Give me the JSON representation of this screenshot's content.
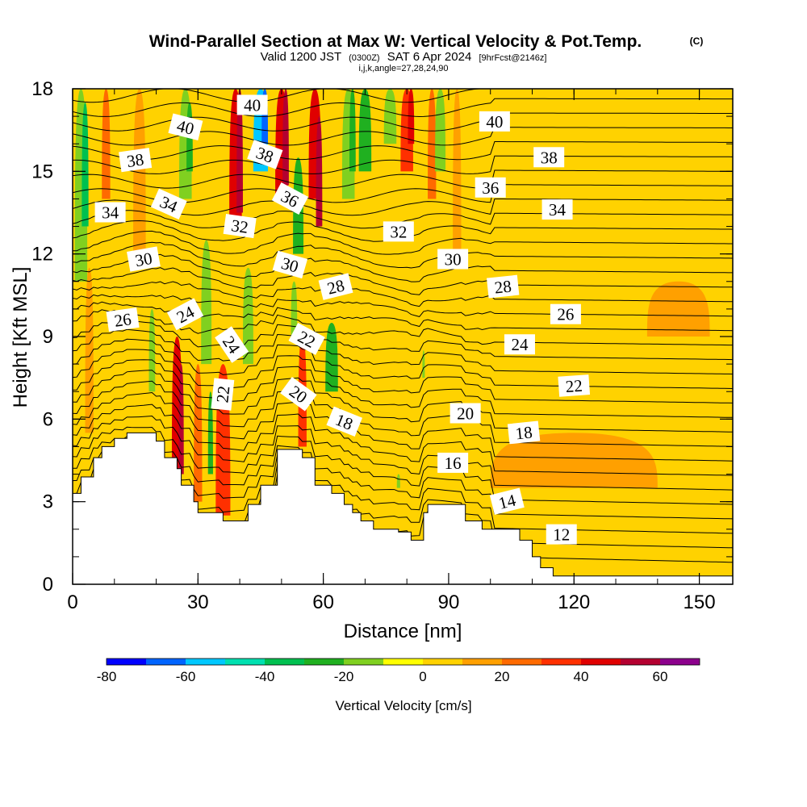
{
  "chart_data": {
    "type": "contour-section",
    "title": "Wind-Parallel Section at Max W: Vertical Velocity & Pot.Temp.",
    "copyright": "(C)",
    "subtitle_main": "Valid 1200 JST",
    "subtitle_utc": "(0300Z)",
    "subtitle_date": "SAT 6 Apr 2024",
    "subtitle_fcst": "[9hrFcst@2146z]",
    "subtitle2": "i,j,k,angle=27,28,24,90",
    "xlabel": "Distance [nm]",
    "ylabel": "Height [Kft MSL]",
    "xlim": [
      0,
      158
    ],
    "ylim": [
      0,
      18
    ],
    "x_ticks": [
      0,
      30,
      60,
      90,
      120,
      150
    ],
    "y_ticks": [
      0,
      3,
      6,
      9,
      12,
      15,
      18
    ],
    "colorbar": {
      "label": "Vertical Velocity [cm/s]",
      "bounds": [
        -80,
        -70,
        -60,
        -50,
        -40,
        -30,
        -20,
        -10,
        0,
        10,
        20,
        30,
        40,
        50,
        60,
        70
      ],
      "tick_labels": [
        "-80",
        "-60",
        "-40",
        "-20",
        "0",
        "20",
        "40",
        "60"
      ],
      "colors": [
        "#0000ff",
        "#0064ff",
        "#00c8ff",
        "#00e0b0",
        "#00c050",
        "#20b020",
        "#80d020",
        "#ffff00",
        "#ffd200",
        "#ffa000",
        "#ff6a00",
        "#ff3000",
        "#e00000",
        "#b40030",
        "#8c008c"
      ]
    },
    "terrain_kft": [
      [
        0,
        3.3
      ],
      [
        2,
        3.3
      ],
      [
        2,
        3.9
      ],
      [
        5,
        3.9
      ],
      [
        5,
        4.6
      ],
      [
        7,
        4.6
      ],
      [
        7,
        5.0
      ],
      [
        10,
        5.0
      ],
      [
        10,
        5.3
      ],
      [
        13,
        5.3
      ],
      [
        13,
        5.5
      ],
      [
        20,
        5.5
      ],
      [
        20,
        5.2
      ],
      [
        22,
        5.2
      ],
      [
        22,
        4.6
      ],
      [
        25,
        4.6
      ],
      [
        25,
        4.2
      ],
      [
        26,
        4.2
      ],
      [
        26,
        3.6
      ],
      [
        29,
        3.6
      ],
      [
        29,
        3.0
      ],
      [
        30,
        3.0
      ],
      [
        30,
        2.6
      ],
      [
        36,
        2.6
      ],
      [
        36,
        2.3
      ],
      [
        42,
        2.3
      ],
      [
        42,
        2.9
      ],
      [
        45,
        2.9
      ],
      [
        45,
        3.6
      ],
      [
        49,
        3.6
      ],
      [
        49,
        4.9
      ],
      [
        55,
        4.9
      ],
      [
        55,
        4.6
      ],
      [
        58,
        4.6
      ],
      [
        58,
        3.6
      ],
      [
        62,
        3.6
      ],
      [
        62,
        3.3
      ],
      [
        65,
        3.3
      ],
      [
        65,
        2.9
      ],
      [
        67,
        2.9
      ],
      [
        67,
        2.6
      ],
      [
        69,
        2.6
      ],
      [
        69,
        2.3
      ],
      [
        72,
        2.3
      ],
      [
        72,
        2.0
      ],
      [
        78,
        2.0
      ],
      [
        78,
        1.9
      ],
      [
        81,
        1.9
      ],
      [
        81,
        1.6
      ],
      [
        84,
        1.6
      ],
      [
        84,
        2.6
      ],
      [
        85,
        2.6
      ],
      [
        85,
        2.9
      ],
      [
        94,
        2.9
      ],
      [
        94,
        2.3
      ],
      [
        98,
        2.3
      ],
      [
        98,
        2.0
      ],
      [
        107,
        2.0
      ],
      [
        107,
        1.6
      ],
      [
        110,
        1.6
      ],
      [
        110,
        1.0
      ],
      [
        112,
        1.0
      ],
      [
        112,
        0.6
      ],
      [
        115,
        0.6
      ],
      [
        115,
        0.3
      ],
      [
        158,
        0.3
      ]
    ],
    "w_cells": [
      {
        "x": 2,
        "y0": 11,
        "y1": 18,
        "w": 3,
        "value": -20
      },
      {
        "x": 3,
        "y0": 13,
        "y1": 17.5,
        "w": 1.6,
        "value": -40
      },
      {
        "x": 4,
        "y0": 5.5,
        "y1": 11.5,
        "w": 2,
        "value": 10
      },
      {
        "x": 8,
        "y0": 14,
        "y1": 18,
        "w": 2,
        "value": 20
      },
      {
        "x": 16,
        "y0": 12,
        "y1": 18,
        "w": 3,
        "value": 10
      },
      {
        "x": 19,
        "y0": 7,
        "y1": 10,
        "w": 1.5,
        "value": -20
      },
      {
        "x": 25,
        "y0": 4,
        "y1": 9,
        "w": 2.5,
        "value": 40
      },
      {
        "x": 26,
        "y0": 4,
        "y1": 8,
        "w": 1.2,
        "value": 50
      },
      {
        "x": 27,
        "y0": 14,
        "y1": 18,
        "w": 3,
        "value": -20
      },
      {
        "x": 28,
        "y0": 15,
        "y1": 17.5,
        "w": 1.5,
        "value": -30
      },
      {
        "x": 30,
        "y0": 3,
        "y1": 8,
        "w": 2,
        "value": 20
      },
      {
        "x": 32,
        "y0": 8,
        "y1": 12.5,
        "w": 2.5,
        "value": -20
      },
      {
        "x": 33,
        "y0": 4,
        "y1": 7,
        "w": 1.2,
        "value": -30
      },
      {
        "x": 36,
        "y0": 2.6,
        "y1": 8,
        "w": 1.5,
        "value": 60
      },
      {
        "x": 36,
        "y0": 2.5,
        "y1": 8,
        "w": 3.5,
        "value": 30
      },
      {
        "x": 39,
        "y0": 13,
        "y1": 18,
        "w": 3,
        "value": 40
      },
      {
        "x": 40,
        "y0": 13.5,
        "y1": 18,
        "w": 1.5,
        "value": 50
      },
      {
        "x": 42,
        "y0": 8,
        "y1": 11.5,
        "w": 2.5,
        "value": -20
      },
      {
        "x": 45,
        "y0": 15,
        "y1": 18,
        "w": 3.5,
        "value": -60
      },
      {
        "x": 46,
        "y0": 16,
        "y1": 18,
        "w": 1.5,
        "value": -70
      },
      {
        "x": 50,
        "y0": 14,
        "y1": 18,
        "w": 3,
        "value": 40
      },
      {
        "x": 51,
        "y0": 14.5,
        "y1": 18,
        "w": 1.5,
        "value": 50
      },
      {
        "x": 53,
        "y0": 9,
        "y1": 11,
        "w": 1.5,
        "value": -20
      },
      {
        "x": 54,
        "y0": 12,
        "y1": 15.5,
        "w": 2.5,
        "value": -30
      },
      {
        "x": 55,
        "y0": 5,
        "y1": 9,
        "w": 2,
        "value": 30
      },
      {
        "x": 58,
        "y0": 14,
        "y1": 18,
        "w": 3,
        "value": 40
      },
      {
        "x": 59,
        "y0": 13,
        "y1": 17,
        "w": 1.5,
        "value": 50
      },
      {
        "x": 62,
        "y0": 7,
        "y1": 9.5,
        "w": 3,
        "value": -30
      },
      {
        "x": 66,
        "y0": 14,
        "y1": 18,
        "w": 3,
        "value": -20
      },
      {
        "x": 67,
        "y0": 15,
        "y1": 18,
        "w": 1.5,
        "value": -30
      },
      {
        "x": 70,
        "y0": 15,
        "y1": 18,
        "w": 3,
        "value": -30
      },
      {
        "x": 76,
        "y0": 16,
        "y1": 18,
        "w": 3,
        "value": -20
      },
      {
        "x": 78,
        "y0": 3.5,
        "y1": 4,
        "w": 0.8,
        "value": -20
      },
      {
        "x": 80,
        "y0": 15,
        "y1": 18,
        "w": 3,
        "value": 30
      },
      {
        "x": 81,
        "y0": 16,
        "y1": 18,
        "w": 1.5,
        "value": 40
      },
      {
        "x": 84,
        "y0": 7.5,
        "y1": 8.5,
        "w": 0.6,
        "value": -20
      },
      {
        "x": 86,
        "y0": 14,
        "y1": 18,
        "w": 2,
        "value": 20
      },
      {
        "x": 88,
        "y0": 15,
        "y1": 18,
        "w": 2.5,
        "value": -20
      },
      {
        "x": 92,
        "y0": 12,
        "y1": 18,
        "w": 2,
        "value": 10
      },
      {
        "x": 120,
        "y0": 3.5,
        "y1": 5.5,
        "w": 40,
        "value": 10
      },
      {
        "x": 145,
        "y0": 9,
        "y1": 11,
        "w": 15,
        "value": 10
      }
    ],
    "theta_labels": [
      {
        "value": "40",
        "x": 43,
        "y": 17.4
      },
      {
        "value": "40",
        "x": 27,
        "y": 16.6
      },
      {
        "value": "38",
        "x": 15,
        "y": 15.4
      },
      {
        "value": "38",
        "x": 46,
        "y": 15.6
      },
      {
        "value": "34",
        "x": 9,
        "y": 13.5
      },
      {
        "value": "34",
        "x": 23,
        "y": 13.8
      },
      {
        "value": "36",
        "x": 52,
        "y": 14.0
      },
      {
        "value": "32",
        "x": 40,
        "y": 13.0
      },
      {
        "value": "30",
        "x": 17,
        "y": 11.8
      },
      {
        "value": "30",
        "x": 52,
        "y": 11.6
      },
      {
        "value": "26",
        "x": 12,
        "y": 9.6
      },
      {
        "value": "24",
        "x": 27,
        "y": 9.8
      },
      {
        "value": "24",
        "x": 38,
        "y": 8.7
      },
      {
        "value": "28",
        "x": 63,
        "y": 10.8
      },
      {
        "value": "22",
        "x": 56,
        "y": 8.9
      },
      {
        "value": "22",
        "x": 36,
        "y": 6.9
      },
      {
        "value": "20",
        "x": 54,
        "y": 6.9
      },
      {
        "value": "18",
        "x": 65,
        "y": 5.9
      },
      {
        "value": "32",
        "x": 78,
        "y": 12.8
      },
      {
        "value": "30",
        "x": 91,
        "y": 11.8
      },
      {
        "value": "28",
        "x": 103,
        "y": 10.8
      },
      {
        "value": "26",
        "x": 118,
        "y": 9.8
      },
      {
        "value": "24",
        "x": 107,
        "y": 8.7
      },
      {
        "value": "22",
        "x": 120,
        "y": 7.2
      },
      {
        "value": "20",
        "x": 94,
        "y": 6.2
      },
      {
        "value": "18",
        "x": 108,
        "y": 5.5
      },
      {
        "value": "16",
        "x": 91,
        "y": 4.4
      },
      {
        "value": "14",
        "x": 104,
        "y": 3.0
      },
      {
        "value": "12",
        "x": 117,
        "y": 1.8
      },
      {
        "value": "40",
        "x": 101,
        "y": 16.8
      },
      {
        "value": "38",
        "x": 114,
        "y": 15.5
      },
      {
        "value": "36",
        "x": 100,
        "y": 14.4
      },
      {
        "value": "34",
        "x": 116,
        "y": 13.6
      }
    ],
    "theta_rotation": [
      0,
      14,
      -8,
      20,
      0,
      24,
      28,
      8,
      -10,
      16,
      -8,
      -28,
      56,
      -14,
      28,
      -84,
      36,
      22,
      0,
      0,
      -6,
      0,
      0,
      -4,
      0,
      -6,
      0,
      -14,
      0,
      0,
      0,
      0,
      0
    ]
  }
}
